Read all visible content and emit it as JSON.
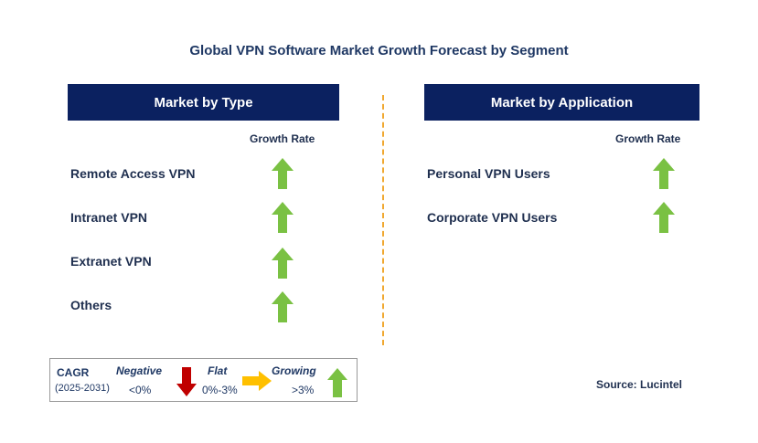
{
  "title": "Global  VPN Software Market Growth Forecast by Segment",
  "left_panel": {
    "header": "Market by Type",
    "growth_rate_label": "Growth Rate",
    "items": [
      {
        "label": "Remote Access VPN",
        "trend": "growing"
      },
      {
        "label": "Intranet VPN",
        "trend": "growing"
      },
      {
        "label": "Extranet VPN",
        "trend": "growing"
      },
      {
        "label": "Others",
        "trend": "growing"
      }
    ]
  },
  "right_panel": {
    "header": "Market by Application",
    "growth_rate_label": "Growth Rate",
    "items": [
      {
        "label": "Personal VPN Users",
        "trend": "growing"
      },
      {
        "label": "Corporate VPN Users",
        "trend": "growing"
      }
    ]
  },
  "legend": {
    "cagr": "CAGR",
    "period": "(2025-2031)",
    "negative_label": "Negative",
    "negative_range": "<0%",
    "flat_label": "Flat",
    "flat_range": "0%-3%",
    "growing_label": "Growing",
    "growing_range": ">3%"
  },
  "source": "Source: Lucintel",
  "colors": {
    "header_bg": "#0b2160",
    "growing_arrow": "#7ac143",
    "negative_arrow": "#c00000",
    "flat_arrow": "#ffc000",
    "divider": "#f0a830"
  },
  "icons": {
    "growing": "up-arrow-icon",
    "negative": "down-arrow-icon",
    "flat": "right-arrow-icon"
  }
}
